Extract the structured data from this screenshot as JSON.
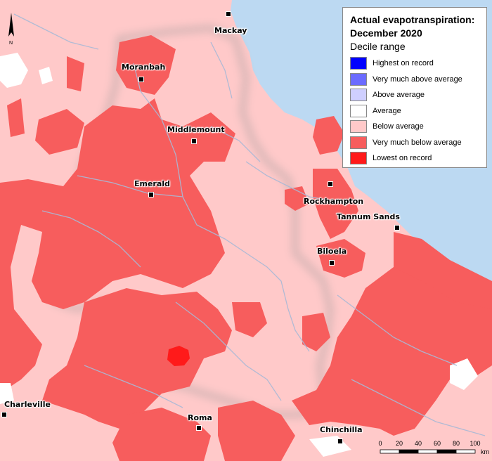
{
  "legend": {
    "title_line1": "Actual evapotranspiration:",
    "title_line2": "December 2020",
    "subtitle": "Decile range",
    "items": [
      {
        "label": "Highest on record",
        "color": "#0000ff"
      },
      {
        "label": "Very much above average",
        "color": "#6b6bff"
      },
      {
        "label": "Above average",
        "color": "#cfcfff"
      },
      {
        "label": "Average",
        "color": "#ffffff"
      },
      {
        "label": "Below average",
        "color": "#ffc9c9"
      },
      {
        "label": "Very much below average",
        "color": "#f75d5d"
      },
      {
        "label": "Lowest on record",
        "color": "#ff1a1a"
      }
    ]
  },
  "towns": {
    "mackay": "Mackay",
    "moranbah": "Moranbah",
    "middlemount": "Middlemount",
    "emerald": "Emerald",
    "rockhampton": "Rockhampton",
    "tannum_sands": "Tannum Sands",
    "biloela": "Biloela",
    "charleville": "Charleville",
    "roma": "Roma",
    "chinchilla": "Chinchilla"
  },
  "scale": {
    "ticks": [
      "0",
      "20",
      "40",
      "60",
      "80",
      "100"
    ],
    "unit": "km"
  },
  "north_label": "N",
  "colors": {
    "ocean": "#bcd9f2",
    "below_average": "#ffc9c9",
    "very_much_below": "#f75d5d",
    "lowest": "#ff1a1a",
    "rivers": "#a9b9d6"
  }
}
